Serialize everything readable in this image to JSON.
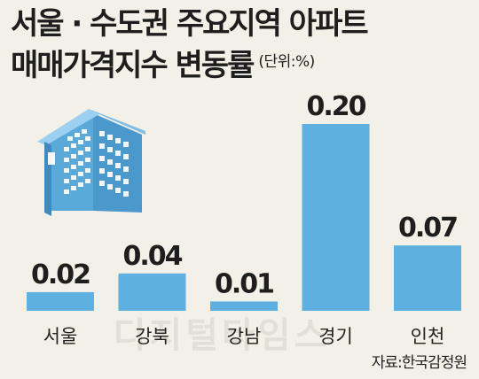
{
  "chart": {
    "title_line1": "서울 · 수도권 주요지역 아파트",
    "title_line2": "매매가격지수 변동률",
    "unit": "(단위:%)",
    "source": "자료:한국감정원"
  },
  "watermark": "디지털타임스",
  "colors": {
    "bar": "#5db0e0",
    "background": "#f3f0e7",
    "text": "#1e1e1e"
  },
  "icon": "apartment-building-icon",
  "chart_data": {
    "type": "bar",
    "title": "서울 · 수도권 주요지역 아파트 매매가격지수 변동률",
    "unit": "(단위:%)",
    "categories": [
      "서울",
      "강북",
      "강남",
      "경기",
      "인천"
    ],
    "values": [
      0.02,
      0.04,
      0.01,
      0.2,
      0.07
    ],
    "value_labels": [
      "0.02",
      "0.04",
      "0.01",
      "0.20",
      "0.07"
    ],
    "ylim": [
      0,
      0.2
    ],
    "grid": false,
    "legend": "none"
  }
}
